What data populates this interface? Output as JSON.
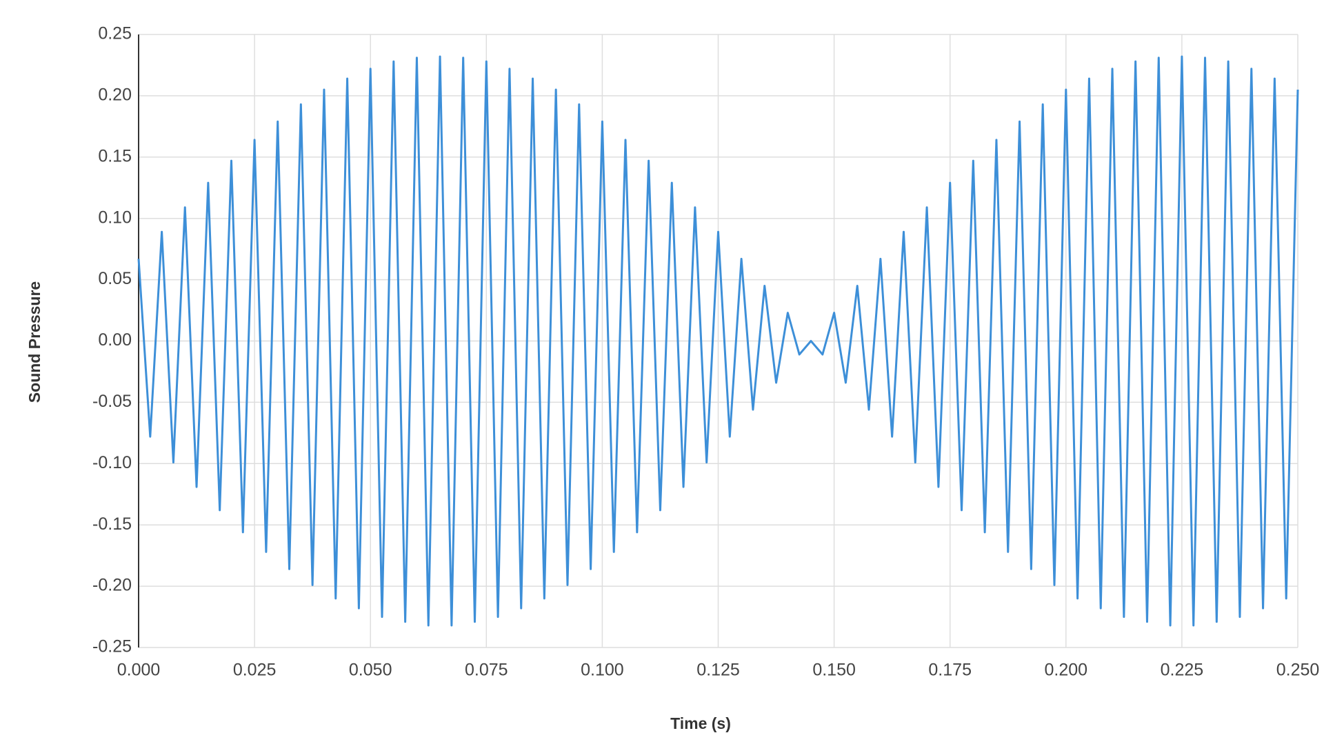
{
  "chart_data": {
    "type": "line",
    "xlabel": "Time (s)",
    "ylabel": "Sound Pressure",
    "xlim": [
      0,
      0.25
    ],
    "ylim": [
      -0.25,
      0.25
    ],
    "xticks": [
      {
        "value": 0,
        "label": "0.000"
      },
      0.025,
      {
        "value": 0.05,
        "label": "0.050"
      },
      0.075,
      {
        "value": 0.1,
        "label": "0.100"
      },
      0.125,
      {
        "value": 0.15,
        "label": "0.150"
      },
      0.175,
      {
        "value": 0.2,
        "label": "0.200"
      },
      0.225,
      {
        "value": 0.25,
        "label": "0.250"
      }
    ],
    "yticks": [
      0.25,
      {
        "value": 0.2,
        "label": "0.20"
      },
      0.15,
      {
        "value": 0.1,
        "label": "0.10"
      },
      0.05,
      {
        "value": 0,
        "label": "0.00"
      },
      -0.05,
      {
        "value": -0.1,
        "label": "-0.10"
      },
      -0.15,
      {
        "value": -0.2,
        "label": "-0.20"
      },
      -0.25
    ],
    "grid": true,
    "x": [
      0,
      0.0025,
      0.005,
      0.0075,
      0.01,
      0.0125,
      0.015,
      0.0175,
      0.02,
      0.0225,
      0.025,
      0.0275,
      0.03,
      0.0325,
      0.035,
      0.0375,
      0.04,
      0.0425,
      0.045,
      0.0475,
      0.05,
      0.0525,
      0.055,
      0.0575,
      0.06,
      0.0625,
      0.065,
      0.0675,
      0.07,
      0.0725,
      0.075,
      0.0775,
      0.08,
      0.0825,
      0.085,
      0.0875,
      0.09,
      0.0925,
      0.095,
      0.0975,
      0.1,
      0.1025,
      0.105,
      0.1075,
      0.11,
      0.1125,
      0.115,
      0.1175,
      0.12,
      0.1225,
      0.125,
      0.1275,
      0.13,
      0.1325,
      0.135,
      0.1375,
      0.14,
      0.1425,
      0.145,
      0.1475,
      0.15,
      0.1525,
      0.155,
      0.1575,
      0.16,
      0.1625,
      0.165,
      0.1675,
      0.17,
      0.1725,
      0.175,
      0.1775,
      0.18,
      0.1825,
      0.185,
      0.1875,
      0.19,
      0.1925,
      0.195,
      0.1975,
      0.2,
      0.2025,
      0.205,
      0.2075,
      0.21,
      0.2125,
      0.215,
      0.2175,
      0.22,
      0.2225,
      0.225,
      0.2275,
      0.23,
      0.2325,
      0.235,
      0.2375,
      0.24,
      0.2425,
      0.245,
      0.2475,
      0.25
    ],
    "series": [
      {
        "color": "#3d8fd8",
        "values": [
          0.067,
          -0.078,
          0.089,
          -0.099,
          0.109,
          -0.119,
          0.129,
          -0.138,
          0.147,
          -0.156,
          0.164,
          -0.172,
          0.179,
          -0.186,
          0.193,
          -0.199,
          0.205,
          -0.21,
          0.214,
          -0.218,
          0.222,
          -0.225,
          0.228,
          -0.229,
          0.231,
          -0.232,
          0.232,
          -0.232,
          0.231,
          -0.229,
          0.228,
          -0.225,
          0.222,
          -0.218,
          0.214,
          -0.21,
          0.205,
          -0.199,
          0.193,
          -0.186,
          0.179,
          -0.172,
          0.164,
          -0.156,
          0.147,
          -0.138,
          0.129,
          -0.119,
          0.109,
          -0.099,
          0.089,
          -0.078,
          0.067,
          -0.056,
          0.045,
          -0.034,
          0.023,
          -0.011,
          0,
          -0.011,
          0.023,
          -0.034,
          0.045,
          -0.056,
          0.067,
          -0.078,
          0.089,
          -0.099,
          0.109,
          -0.119,
          0.129,
          -0.138,
          0.147,
          -0.156,
          0.164,
          -0.172,
          0.179,
          -0.186,
          0.193,
          -0.199,
          0.205,
          -0.21,
          0.214,
          -0.218,
          0.222,
          -0.225,
          0.228,
          -0.229,
          0.231,
          -0.232,
          0.232,
          -0.232,
          0.231,
          -0.229,
          0.228,
          -0.225,
          0.222,
          -0.218,
          0.214,
          -0.21,
          0.205
        ]
      }
    ]
  }
}
